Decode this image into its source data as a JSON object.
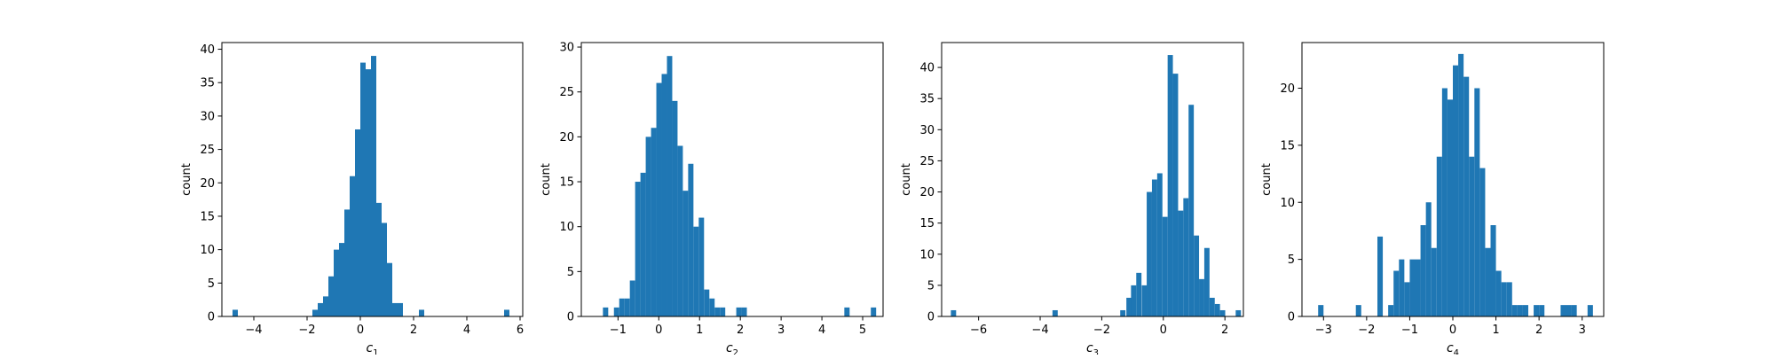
{
  "figure": {
    "background": "#ffffff",
    "bar_color": "#1f77b4"
  },
  "chart_data": [
    {
      "type": "bar",
      "subtype": "histogram",
      "xlabel_base": "c",
      "xlabel_sub": "1",
      "ylabel": "count",
      "xlim": [
        -5.2,
        6.1
      ],
      "ylim": [
        0,
        41
      ],
      "xticks": [
        -4,
        -2,
        0,
        2,
        4,
        6
      ],
      "yticks": [
        0,
        5,
        10,
        15,
        20,
        25,
        30,
        35,
        40
      ],
      "bin_width": 0.2,
      "bins": [
        [
          -4.8,
          1
        ],
        [
          -1.8,
          1
        ],
        [
          -1.6,
          2
        ],
        [
          -1.4,
          3
        ],
        [
          -1.2,
          6
        ],
        [
          -1.0,
          10
        ],
        [
          -0.8,
          11
        ],
        [
          -0.6,
          16
        ],
        [
          -0.4,
          21
        ],
        [
          -0.2,
          28
        ],
        [
          0.0,
          38
        ],
        [
          0.2,
          37
        ],
        [
          0.4,
          39
        ],
        [
          0.6,
          17
        ],
        [
          0.8,
          14
        ],
        [
          1.0,
          8
        ],
        [
          1.2,
          2
        ],
        [
          1.4,
          2
        ],
        [
          2.2,
          1
        ],
        [
          5.4,
          1
        ]
      ]
    },
    {
      "type": "bar",
      "subtype": "histogram",
      "xlabel_base": "c",
      "xlabel_sub": "2",
      "ylabel": "count",
      "xlim": [
        -1.9,
        5.5
      ],
      "ylim": [
        0,
        30.5
      ],
      "xticks": [
        -1,
        0,
        1,
        2,
        3,
        4,
        5
      ],
      "yticks": [
        0,
        5,
        10,
        15,
        20,
        25,
        30
      ],
      "bin_width": 0.13,
      "bins": [
        [
          -1.37,
          1
        ],
        [
          -1.1,
          1
        ],
        [
          -0.97,
          2
        ],
        [
          -0.84,
          2
        ],
        [
          -0.71,
          4
        ],
        [
          -0.58,
          15
        ],
        [
          -0.45,
          16
        ],
        [
          -0.32,
          20
        ],
        [
          -0.19,
          21
        ],
        [
          -0.06,
          26
        ],
        [
          0.07,
          27
        ],
        [
          0.2,
          29
        ],
        [
          0.33,
          24
        ],
        [
          0.46,
          19
        ],
        [
          0.59,
          14
        ],
        [
          0.72,
          17
        ],
        [
          0.85,
          10
        ],
        [
          0.98,
          11
        ],
        [
          1.11,
          3
        ],
        [
          1.24,
          2
        ],
        [
          1.37,
          1
        ],
        [
          1.5,
          1
        ],
        [
          1.9,
          1
        ],
        [
          2.03,
          1
        ],
        [
          4.55,
          1
        ],
        [
          5.2,
          1
        ]
      ]
    },
    {
      "type": "bar",
      "subtype": "histogram",
      "xlabel_base": "c",
      "xlabel_sub": "3",
      "ylabel": "count",
      "xlim": [
        -7.2,
        2.6
      ],
      "ylim": [
        0,
        44
      ],
      "xticks": [
        -6,
        -4,
        -2,
        0,
        2
      ],
      "yticks": [
        0,
        5,
        10,
        15,
        20,
        25,
        30,
        35,
        40
      ],
      "bin_width": 0.17,
      "bins": [
        [
          -6.9,
          1
        ],
        [
          -3.6,
          1
        ],
        [
          -1.4,
          1
        ],
        [
          -1.2,
          3
        ],
        [
          -1.05,
          5
        ],
        [
          -0.88,
          7
        ],
        [
          -0.7,
          5
        ],
        [
          -0.54,
          20
        ],
        [
          -0.37,
          22
        ],
        [
          -0.2,
          23
        ],
        [
          -0.03,
          16
        ],
        [
          0.14,
          42
        ],
        [
          0.31,
          39
        ],
        [
          0.48,
          17
        ],
        [
          0.65,
          19
        ],
        [
          0.82,
          34
        ],
        [
          0.99,
          13
        ],
        [
          1.16,
          6
        ],
        [
          1.33,
          11
        ],
        [
          1.5,
          3
        ],
        [
          1.67,
          2
        ],
        [
          1.84,
          1
        ],
        [
          2.35,
          1
        ]
      ]
    },
    {
      "type": "bar",
      "subtype": "histogram",
      "xlabel_base": "c",
      "xlabel_sub": "4",
      "ylabel": "count",
      "xlim": [
        -3.5,
        3.5
      ],
      "ylim": [
        0,
        24
      ],
      "xticks": [
        -3,
        -2,
        -1,
        0,
        1,
        2,
        3
      ],
      "yticks": [
        0,
        5,
        10,
        15,
        20
      ],
      "bin_width": 0.125,
      "bins": [
        [
          -3.125,
          1
        ],
        [
          -2.25,
          1
        ],
        [
          -1.75,
          7
        ],
        [
          -1.5,
          1
        ],
        [
          -1.375,
          4
        ],
        [
          -1.25,
          5
        ],
        [
          -1.125,
          3
        ],
        [
          -1.0,
          5
        ],
        [
          -0.875,
          5
        ],
        [
          -0.75,
          8
        ],
        [
          -0.625,
          10
        ],
        [
          -0.5,
          6
        ],
        [
          -0.375,
          14
        ],
        [
          -0.25,
          20
        ],
        [
          -0.125,
          19
        ],
        [
          0.0,
          22
        ],
        [
          0.125,
          23
        ],
        [
          0.25,
          21
        ],
        [
          0.375,
          14
        ],
        [
          0.5,
          20
        ],
        [
          0.625,
          13
        ],
        [
          0.75,
          6
        ],
        [
          0.875,
          8
        ],
        [
          1.0,
          4
        ],
        [
          1.125,
          3
        ],
        [
          1.25,
          3
        ],
        [
          1.375,
          1
        ],
        [
          1.5,
          1
        ],
        [
          1.625,
          1
        ],
        [
          1.875,
          1
        ],
        [
          2.0,
          1
        ],
        [
          2.5,
          1
        ],
        [
          2.625,
          1
        ],
        [
          2.75,
          1
        ],
        [
          3.125,
          1
        ]
      ]
    }
  ]
}
